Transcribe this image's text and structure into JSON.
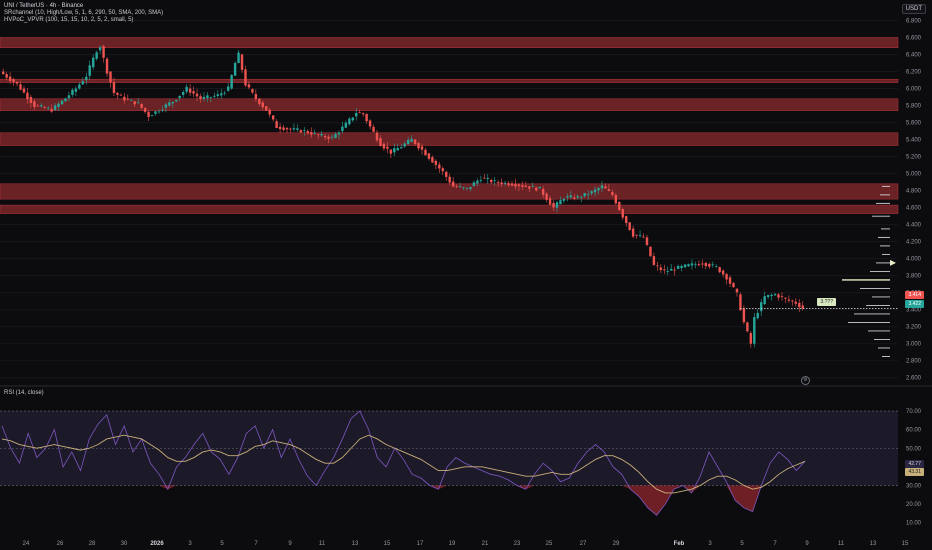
{
  "header": {
    "symbol": "UNI / TetherUS · 4h · Binance",
    "indicator_1": "SRchannel (10, High/Low, 5, 1, 6, 290, 50, SMA, 200, SMA)",
    "indicator_2": "HVPoC_VPVR (100, 15, 15, 10, 2, 5, 2, small, 5)",
    "currency": "USDT"
  },
  "rsi_pane": {
    "label": "RSI (14, close)"
  },
  "price_tags": {
    "last": "3.414",
    "countdown": "3.422",
    "vpoc": "3.???"
  },
  "rsi_tags": {
    "rsi": "42.77",
    "sma": "43.31"
  },
  "colors": {
    "background": "#0c0c0f",
    "up": "#26a69a",
    "down": "#ef5350",
    "sr_zone": "#8b2a2e",
    "rsi_line": "#7e57c2",
    "rsi_ma": "#c9b07a",
    "rsi_band": "#2a2540"
  },
  "gear_icon": "gear-icon",
  "chart_data": [
    {
      "type": "candlestick",
      "title": "UNI / TetherUS · 4h · Binance",
      "y_axis_ticks": [
        "6.800",
        "6.600",
        "6.400",
        "6.200",
        "6.000",
        "5.800",
        "5.600",
        "5.400",
        "5.200",
        "5.000",
        "4.800",
        "4.600",
        "4.400",
        "4.200",
        "4.000",
        "3.800",
        "3.600",
        "3.400",
        "3.200",
        "3.000",
        "2.800",
        "2.600"
      ],
      "ylim": [
        2.55,
        6.9
      ],
      "x_axis_ticks": [
        "24",
        "26",
        "28",
        "30",
        "2026",
        "3",
        "5",
        "7",
        "9",
        "11",
        "13",
        "15",
        "17",
        "19",
        "21",
        "23",
        "25",
        "27",
        "29",
        "Feb",
        "3",
        "5",
        "7",
        "9",
        "11",
        "13",
        "15"
      ],
      "sr_zones": [
        [
          6.48,
          6.6
        ],
        [
          6.07,
          6.11
        ],
        [
          5.74,
          5.88
        ],
        [
          5.33,
          5.48
        ],
        [
          4.7,
          4.88
        ],
        [
          4.53,
          4.63
        ]
      ],
      "price_path": [
        [
          0,
          6.2
        ],
        [
          5,
          6.05
        ],
        [
          10,
          5.8
        ],
        [
          15,
          5.75
        ],
        [
          18,
          5.85
        ],
        [
          22,
          6.0
        ],
        [
          25,
          6.15
        ],
        [
          28,
          6.45
        ],
        [
          29,
          6.5
        ],
        [
          31,
          6.2
        ],
        [
          33,
          5.95
        ],
        [
          36,
          5.88
        ],
        [
          40,
          5.82
        ],
        [
          43,
          5.68
        ],
        [
          46,
          5.75
        ],
        [
          50,
          5.85
        ],
        [
          54,
          6.0
        ],
        [
          58,
          5.88
        ],
        [
          63,
          5.92
        ],
        [
          66,
          6.0
        ],
        [
          68,
          6.3
        ],
        [
          69,
          6.4
        ],
        [
          71,
          6.05
        ],
        [
          74,
          5.88
        ],
        [
          77,
          5.75
        ],
        [
          80,
          5.55
        ],
        [
          84,
          5.52
        ],
        [
          88,
          5.5
        ],
        [
          92,
          5.45
        ],
        [
          96,
          5.42
        ],
        [
          100,
          5.58
        ],
        [
          103,
          5.72
        ],
        [
          105,
          5.7
        ],
        [
          107,
          5.55
        ],
        [
          110,
          5.35
        ],
        [
          113,
          5.25
        ],
        [
          116,
          5.32
        ],
        [
          119,
          5.4
        ],
        [
          122,
          5.28
        ],
        [
          125,
          5.15
        ],
        [
          128,
          5.02
        ],
        [
          131,
          4.85
        ],
        [
          135,
          4.82
        ],
        [
          139,
          4.95
        ],
        [
          143,
          4.9
        ],
        [
          148,
          4.88
        ],
        [
          152,
          4.85
        ],
        [
          156,
          4.82
        ],
        [
          160,
          4.6
        ],
        [
          163,
          4.72
        ],
        [
          167,
          4.72
        ],
        [
          171,
          4.78
        ],
        [
          174,
          4.85
        ],
        [
          177,
          4.75
        ],
        [
          180,
          4.5
        ],
        [
          183,
          4.28
        ],
        [
          186,
          4.25
        ],
        [
          189,
          3.92
        ],
        [
          192,
          3.85
        ],
        [
          195,
          3.88
        ],
        [
          199,
          3.92
        ],
        [
          203,
          3.95
        ],
        [
          207,
          3.9
        ],
        [
          210,
          3.78
        ],
        [
          213,
          3.58
        ],
        [
          215,
          3.25
        ],
        [
          217,
          3.0
        ],
        [
          218,
          3.3
        ],
        [
          221,
          3.55
        ],
        [
          224,
          3.58
        ],
        [
          227,
          3.52
        ],
        [
          230,
          3.48
        ],
        [
          232,
          3.42
        ]
      ],
      "last_price": 3.414
    },
    {
      "type": "line",
      "title": "RSI (14, close)",
      "y_axis_ticks": [
        "70.00",
        "60.00",
        "50.00",
        "40.00",
        "30.00",
        "20.00",
        "10.00"
      ],
      "ylim": [
        5,
        77
      ],
      "levels": {
        "upper": 70,
        "middle": 50,
        "lower": 30
      },
      "series": [
        {
          "name": "RSI",
          "values": [
            62,
            50,
            42,
            58,
            45,
            50,
            60,
            40,
            48,
            38,
            55,
            63,
            68,
            52,
            62,
            48,
            55,
            42,
            36,
            28,
            40,
            45,
            52,
            58,
            48,
            44,
            36,
            45,
            58,
            62,
            50,
            60,
            45,
            55,
            44,
            35,
            30,
            38,
            45,
            55,
            66,
            70,
            60,
            45,
            40,
            50,
            44,
            36,
            34,
            30,
            28,
            40,
            45,
            42,
            40,
            38,
            36,
            35,
            33,
            30,
            28,
            36,
            42,
            38,
            32,
            34,
            42,
            48,
            52,
            48,
            40,
            36,
            28,
            24,
            18,
            14,
            20,
            28,
            30,
            26,
            35,
            48,
            40,
            32,
            22,
            18,
            16,
            30,
            42,
            48,
            44,
            38,
            43
          ]
        },
        {
          "name": "SMA",
          "values": [
            55,
            54,
            52,
            51,
            50,
            51,
            52,
            51,
            50,
            49,
            50,
            52,
            55,
            56,
            57,
            56,
            55,
            52,
            49,
            45,
            43,
            43,
            45,
            48,
            49,
            48,
            46,
            46,
            48,
            51,
            52,
            54,
            53,
            52,
            50,
            47,
            44,
            42,
            42,
            45,
            50,
            55,
            57,
            55,
            52,
            50,
            48,
            46,
            44,
            41,
            38,
            38,
            39,
            40,
            40,
            40,
            39,
            38,
            37,
            36,
            35,
            35,
            36,
            37,
            36,
            36,
            38,
            41,
            44,
            46,
            46,
            44,
            41,
            37,
            32,
            28,
            26,
            26,
            27,
            28,
            30,
            33,
            35,
            35,
            33,
            30,
            28,
            29,
            32,
            36,
            39,
            41,
            43
          ]
        }
      ],
      "last_values": {
        "rsi": 42.77,
        "sma": 43.31
      }
    }
  ]
}
